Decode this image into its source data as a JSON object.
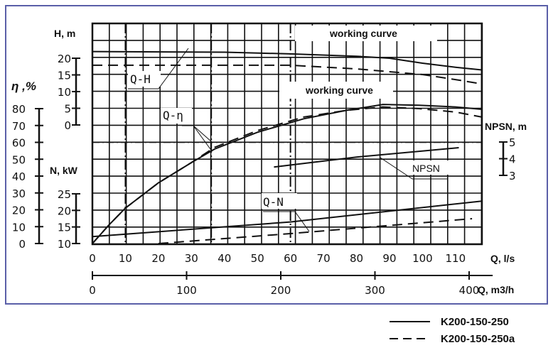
{
  "chart_data": {
    "type": "line",
    "title": "",
    "frame_color": "#5a5fa8",
    "grid": true,
    "x_axes": [
      {
        "label": "Q, l/s",
        "ticks": [
          0,
          10,
          20,
          30,
          40,
          50,
          60,
          70,
          80,
          90,
          100,
          110
        ],
        "range": [
          0,
          118
        ]
      },
      {
        "label": "Q, m3/h",
        "ticks": [
          0,
          100,
          200,
          300,
          400
        ],
        "range": [
          0,
          425
        ]
      }
    ],
    "y_axes": {
      "H": {
        "label": "H, m",
        "ticks": [
          0,
          5,
          10,
          15,
          20
        ]
      },
      "eta": {
        "label": "η ,%",
        "ticks": [
          0,
          10,
          20,
          30,
          40,
          50,
          60,
          70,
          80
        ]
      },
      "N": {
        "label": "N, kW",
        "ticks": [
          10,
          15,
          20,
          25
        ]
      },
      "NPSN": {
        "label": "NPSN, m",
        "ticks": [
          3,
          4,
          5
        ]
      }
    },
    "curve_labels": {
      "qh": "Q-H",
      "qeta": "Q-η",
      "qn": "Q-N",
      "npsn": "NPSN"
    },
    "annotations": [
      "working curve",
      "working curve"
    ],
    "legend": {
      "placement": "bottom-right",
      "entries": [
        {
          "name": "K200-150-250",
          "style": "solid"
        },
        {
          "name": "K200-150-250a",
          "style": "dashed"
        }
      ]
    },
    "series": [
      {
        "name": "K200-150-250",
        "curve": "Q-H",
        "axis": "H",
        "style": "solid",
        "points": [
          [
            0,
            22
          ],
          [
            40,
            21.8
          ],
          [
            60,
            21.3
          ],
          [
            80,
            20.6
          ],
          [
            90,
            20
          ],
          [
            100,
            18.5
          ],
          [
            110,
            17.3
          ],
          [
            118,
            16.5
          ]
        ]
      },
      {
        "name": "K200-150-250a",
        "curve": "Q-H",
        "axis": "H",
        "style": "dashed",
        "points": [
          [
            0,
            17.9
          ],
          [
            60,
            17.9
          ],
          [
            80,
            16.8
          ],
          [
            100,
            15.1
          ],
          [
            110,
            13.6
          ],
          [
            118,
            12.3
          ]
        ]
      },
      {
        "name": "K200-150-250",
        "curve": "Q-η",
        "axis": "eta",
        "style": "solid",
        "points": [
          [
            0,
            0
          ],
          [
            5,
            11
          ],
          [
            10,
            21
          ],
          [
            20,
            36
          ],
          [
            30,
            48
          ],
          [
            37,
            56
          ],
          [
            50,
            66
          ],
          [
            64,
            74
          ],
          [
            77,
            79
          ],
          [
            88,
            82.5
          ],
          [
            99,
            82
          ],
          [
            110,
            81
          ],
          [
            118,
            79.6
          ]
        ]
      },
      {
        "name": "K200-150-250a",
        "curve": "Q-η",
        "axis": "eta",
        "style": "dashed",
        "points": [
          [
            0,
            0
          ],
          [
            5,
            11
          ],
          [
            10,
            21
          ],
          [
            20,
            36
          ],
          [
            30,
            48
          ],
          [
            37,
            57
          ],
          [
            50,
            67
          ],
          [
            64,
            75
          ],
          [
            77,
            79
          ],
          [
            88,
            81
          ],
          [
            99,
            80
          ],
          [
            110,
            78
          ],
          [
            118,
            75
          ]
        ]
      },
      {
        "name": "K200-150-250",
        "curve": "NPSN",
        "axis": "NPSN",
        "style": "solid",
        "points": [
          [
            55,
            3.5
          ],
          [
            80,
            4.1
          ],
          [
            111,
            4.66
          ]
        ]
      },
      {
        "name": "K200-150-250",
        "curve": "Q-N",
        "axis": "N",
        "style": "solid",
        "points": [
          [
            0,
            12.1
          ],
          [
            60,
            16.5
          ],
          [
            118,
            22.8
          ]
        ]
      },
      {
        "name": "K200-150-250a",
        "curve": "Q-N",
        "axis": "N",
        "style": "dashed",
        "points": [
          [
            20,
            10
          ],
          [
            60,
            13
          ],
          [
            115,
            17.5
          ]
        ]
      }
    ]
  }
}
